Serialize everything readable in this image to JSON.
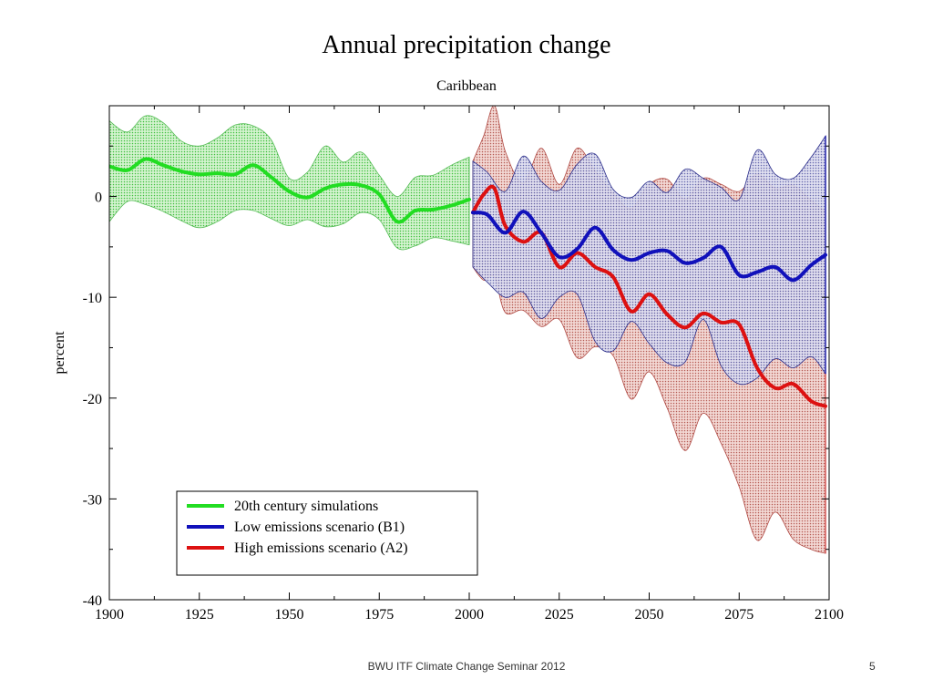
{
  "slide": {
    "footer": "BWU ITF Climate Change Seminar 2012",
    "number": "5"
  },
  "chart_data": {
    "type": "area",
    "title": "Annual precipitation change",
    "subtitle": "Caribbean",
    "xlabel": "",
    "ylabel": "percent",
    "xlim": [
      1900,
      2100
    ],
    "ylim": [
      -40,
      9
    ],
    "x_ticks": [
      1900,
      1925,
      1950,
      1975,
      2000,
      2025,
      2050,
      2075,
      2100
    ],
    "y_ticks": [
      -40,
      -30,
      -20,
      -10,
      0
    ],
    "grid": false,
    "legend_position": "bottom-left",
    "colors": {
      "historical": "#22dd22",
      "b1": "#1111bb",
      "a2": "#dd1111",
      "historical_fill": "#b7ecb0",
      "b1_fill": "#c4c6e4",
      "a2_fill": "#e8c0bd"
    },
    "series": [
      {
        "name": "20th century simulations",
        "color": "#22dd22",
        "x": [
          1900,
          1905,
          1910,
          1915,
          1920,
          1925,
          1930,
          1935,
          1940,
          1945,
          1950,
          1955,
          1960,
          1965,
          1970,
          1975,
          1980,
          1985,
          1990,
          1995,
          2000
        ],
        "mean": [
          3,
          2.6,
          3.7,
          3.1,
          2.5,
          2.2,
          2.3,
          2.2,
          3.1,
          1.9,
          0.5,
          -0.1,
          0.8,
          1.2,
          1.1,
          0.2,
          -2.5,
          -1.4,
          -1.3,
          -0.9,
          -0.3
        ],
        "upper": [
          7.5,
          6.4,
          8,
          7.3,
          5.5,
          5,
          5.8,
          7.1,
          7,
          5.6,
          1.8,
          2.4,
          5,
          3.4,
          4.4,
          2.1,
          0,
          1.9,
          2.1,
          3.1,
          3.9
        ],
        "lower": [
          -2.5,
          -0.5,
          -0.8,
          -1.5,
          -2.4,
          -3.1,
          -2.5,
          -1.4,
          -1.4,
          -2.2,
          -2.9,
          -2.3,
          -3,
          -2.7,
          -1.6,
          -2.3,
          -5.1,
          -4.9,
          -4.1,
          -4.4,
          -4.8
        ]
      },
      {
        "name": "Low emissions scenario (B1)",
        "color": "#1111bb",
        "x": [
          2001,
          2005,
          2010,
          2015,
          2020,
          2025,
          2030,
          2035,
          2040,
          2045,
          2050,
          2055,
          2060,
          2065,
          2070,
          2075,
          2080,
          2085,
          2090,
          2095,
          2099
        ],
        "mean": [
          -1.6,
          -1.8,
          -3.6,
          -1.5,
          -3.6,
          -6,
          -5.2,
          -3.1,
          -5.3,
          -6.3,
          -5.6,
          -5.4,
          -6.6,
          -6.1,
          -5,
          -7.8,
          -7.5,
          -7,
          -8.3,
          -6.8,
          -5.8
        ],
        "upper": [
          3.5,
          2.4,
          0.5,
          4,
          1.5,
          0.6,
          3.2,
          4.2,
          0.7,
          -0.1,
          1.5,
          0.4,
          2.7,
          1.8,
          0.9,
          -0.3,
          4.6,
          2.2,
          1.8,
          3.9,
          6
        ],
        "lower": [
          -7,
          -8.5,
          -10,
          -9.5,
          -12.1,
          -10,
          -9.7,
          -14.4,
          -15.3,
          -12.4,
          -14.6,
          -16.5,
          -16.4,
          -12.2,
          -16.8,
          -18.6,
          -18,
          -16.1,
          -17,
          -15.9,
          -17.6
        ]
      },
      {
        "name": "High emissions scenario (A2)",
        "color": "#dd1111",
        "x": [
          2001,
          2004,
          2007,
          2010,
          2015,
          2020,
          2025,
          2030,
          2035,
          2040,
          2045,
          2050,
          2055,
          2060,
          2065,
          2070,
          2075,
          2080,
          2085,
          2090,
          2095,
          2099
        ],
        "mean": [
          -1.6,
          0.2,
          0.8,
          -2.9,
          -4.5,
          -3.6,
          -7,
          -5.6,
          -7,
          -8,
          -11.4,
          -9.7,
          -11.7,
          -13,
          -11.6,
          -12.5,
          -12.7,
          -17,
          -19,
          -18.6,
          -20.3,
          -20.8
        ],
        "upper": [
          3.5,
          6,
          9,
          4.5,
          1.3,
          4.8,
          1.2,
          4.8,
          2.5,
          0.3,
          -1.2,
          1.2,
          1.7,
          -0.3,
          1.8,
          1.2,
          0.5,
          2.2,
          0.8,
          1.1,
          -0.4,
          -1.5
        ],
        "lower": [
          -7,
          -8.3,
          -8,
          -11.5,
          -11.3,
          -12.9,
          -12.2,
          -16,
          -14.9,
          -15.8,
          -20.1,
          -17.4,
          -21,
          -25.2,
          -21.5,
          -24.5,
          -28.8,
          -34.1,
          -31.3,
          -34,
          -35,
          -35.4
        ]
      }
    ]
  }
}
